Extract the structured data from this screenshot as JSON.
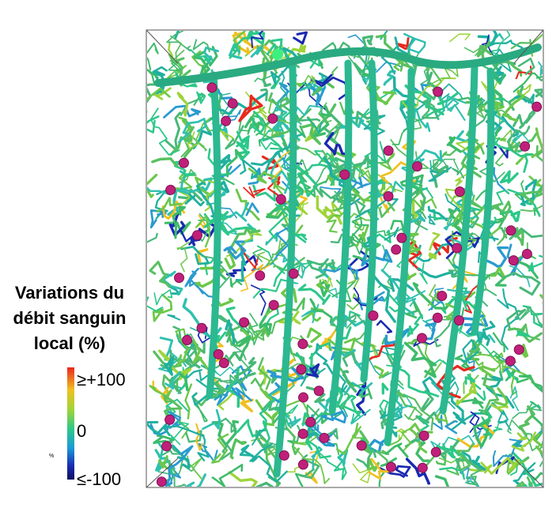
{
  "legend": {
    "title_lines": [
      "Variations du",
      "débit sanguin",
      "local (%)"
    ],
    "max_label": "≥+100",
    "mid_label": "0",
    "min_label": "≤-100",
    "unit": "%"
  }
}
